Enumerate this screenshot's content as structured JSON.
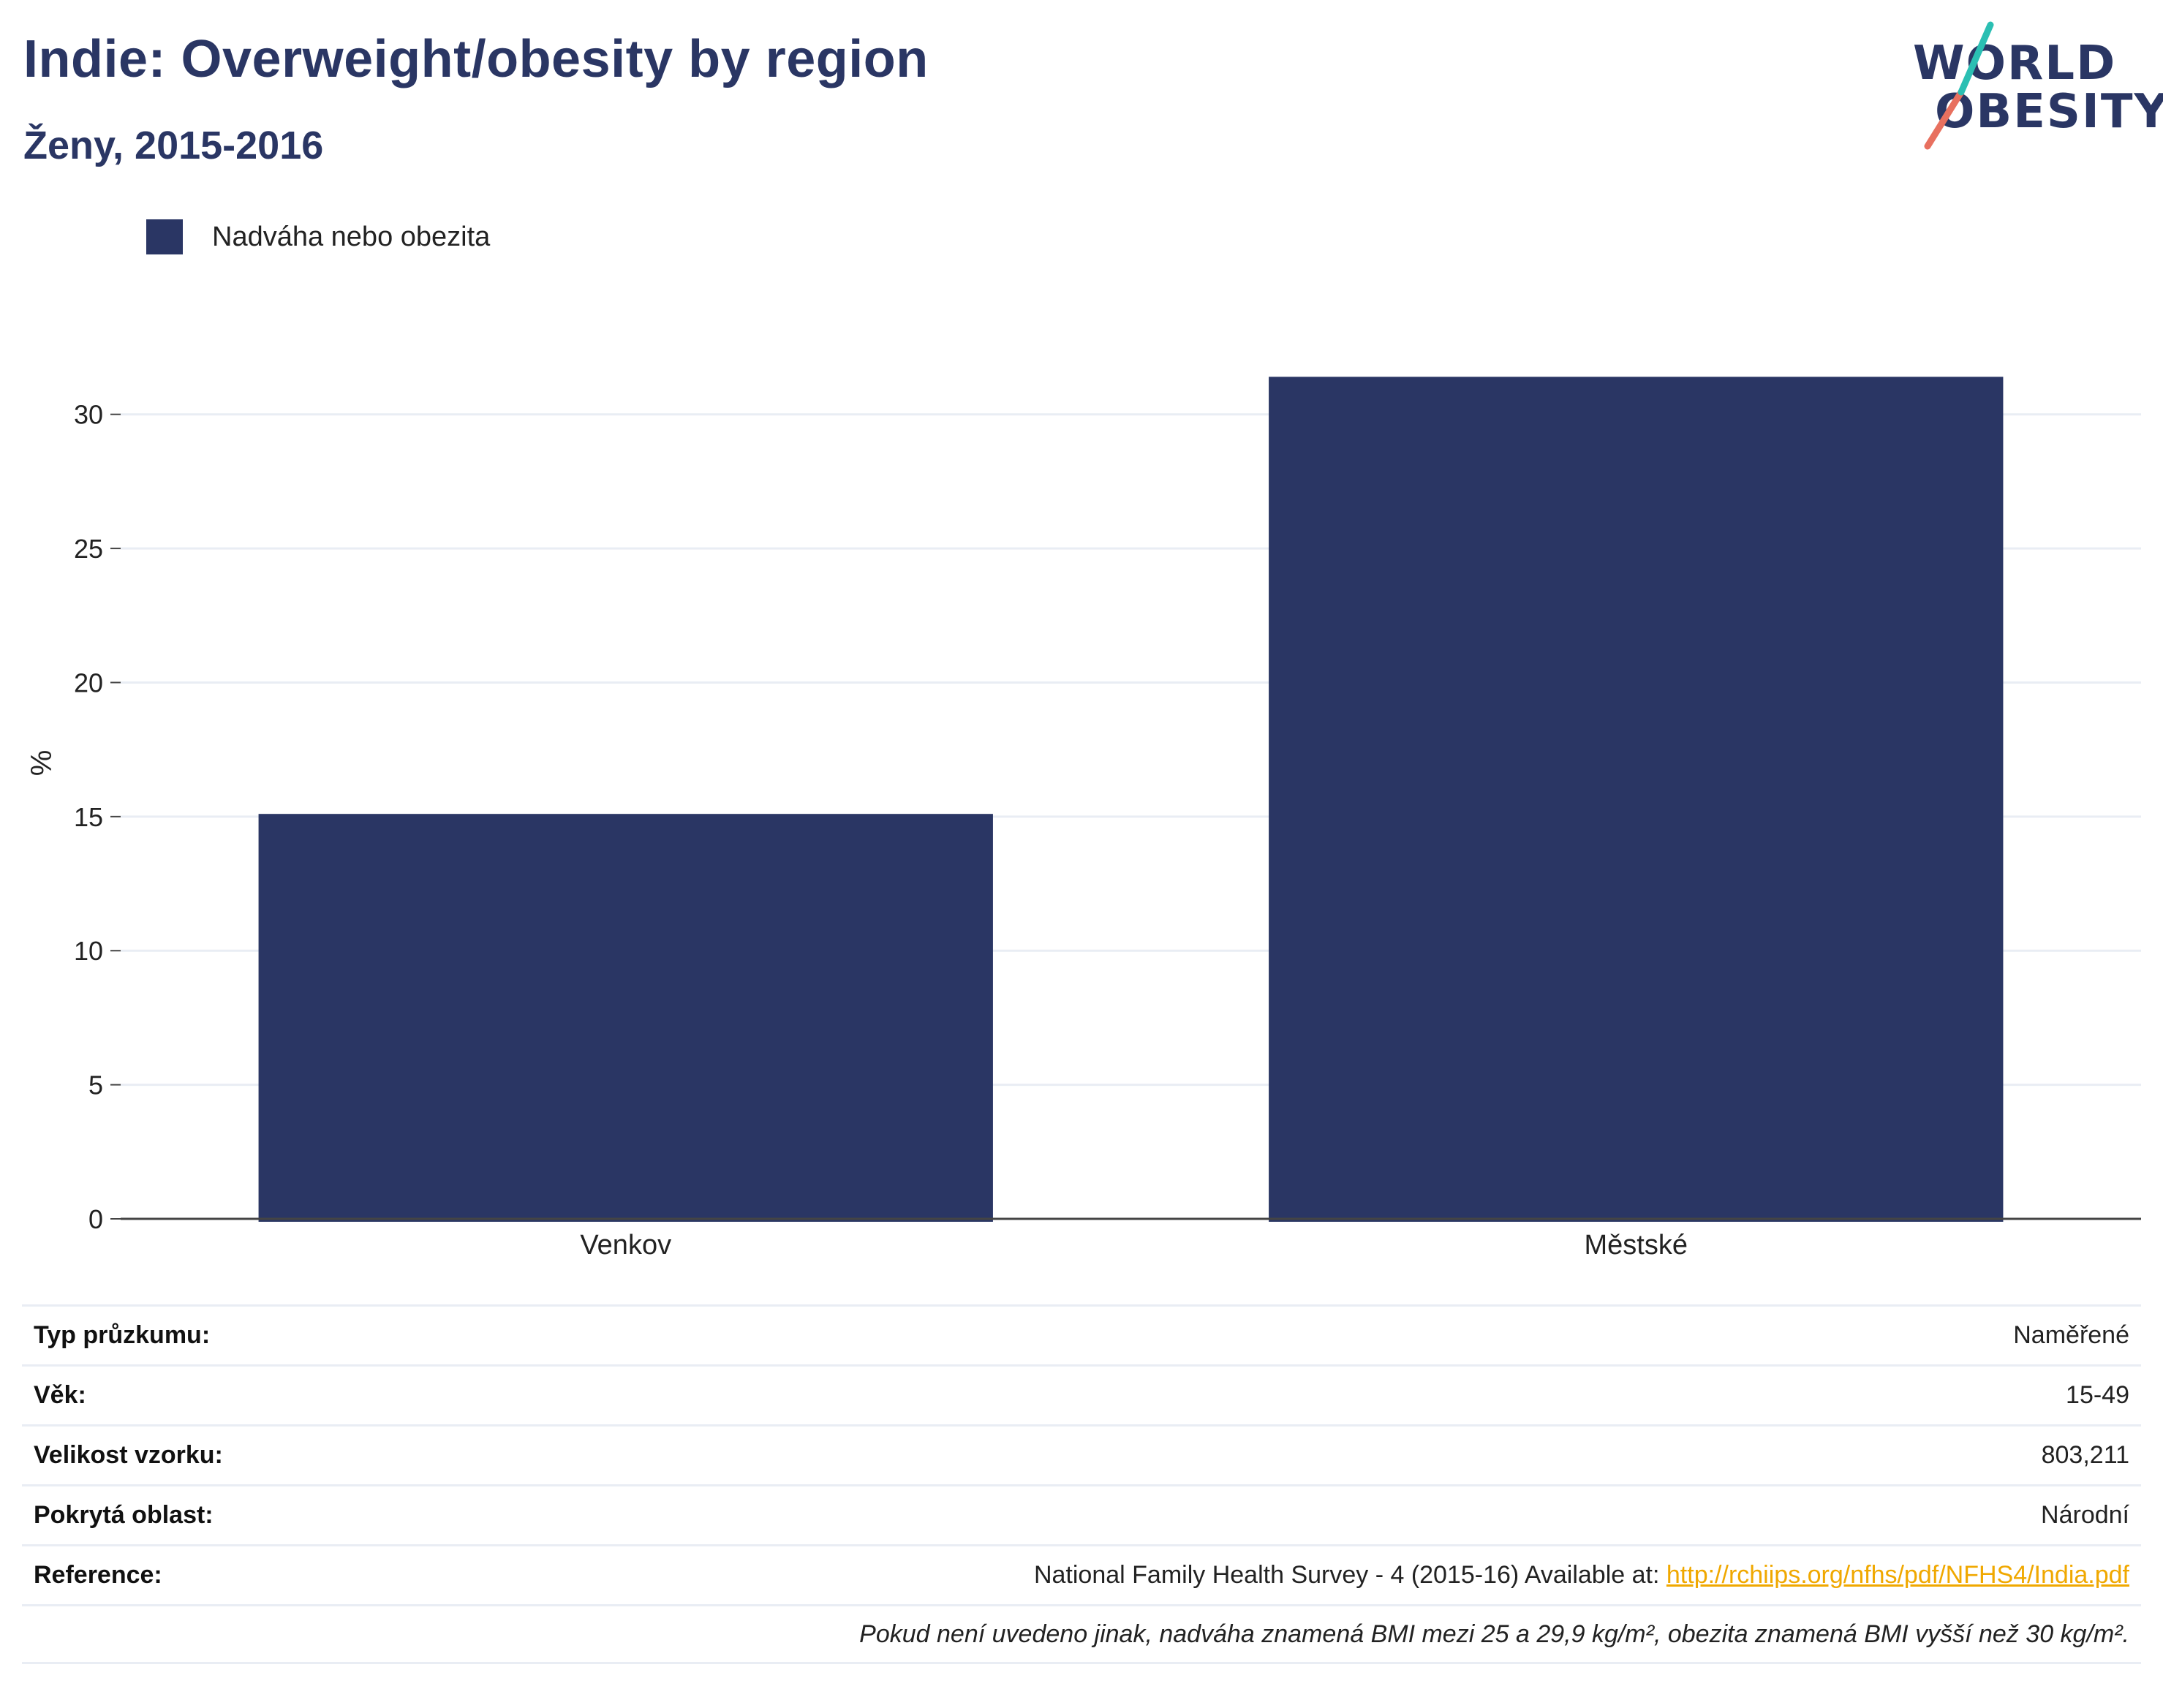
{
  "title": "Indie: Overweight/obesity by region",
  "subtitle": "Ženy, 2015-2016",
  "logo": {
    "line1": "WORLD",
    "line2": "OBESITY"
  },
  "legend": {
    "label": "Nadváha nebo obezita",
    "color": "#2a3664"
  },
  "chart_data": {
    "type": "bar",
    "categories": [
      "Venkov",
      "Městské"
    ],
    "series": [
      {
        "name": "Nadváha nebo obezita",
        "values": [
          15.1,
          31.4
        ],
        "color": "#2a3664"
      }
    ],
    "ylabel": "%",
    "xlabel": "",
    "ylim": [
      0,
      34
    ],
    "yticks": [
      0,
      5,
      10,
      15,
      20,
      25,
      30
    ],
    "grid": true,
    "legend_position": "top-left"
  },
  "info": {
    "rows": [
      {
        "key": "Typ průzkumu:",
        "value": "Naměřené"
      },
      {
        "key": "Věk:",
        "value": "15-49"
      },
      {
        "key": "Velikost vzorku:",
        "value": "803,211"
      },
      {
        "key": "Pokrytá oblast:",
        "value": "Národní"
      }
    ],
    "reference": {
      "key": "Reference:",
      "text": "National Family Health Survey - 4 (2015-16) Available at: ",
      "link": "http://rchiips.org/nfhs/pdf/NFHS4/India.pdf"
    },
    "note": "Pokud není uvedeno jinak, nadváha znamená BMI mezi 25 a 29,9 kg/m², obezita znamená BMI vyšší než 30 kg/m²."
  },
  "colors": {
    "accent": "#2a3664",
    "grid": "#e9edf4",
    "link": "#f0a800",
    "logo_teal": "#2bbfb3",
    "logo_coral": "#e8705f"
  }
}
